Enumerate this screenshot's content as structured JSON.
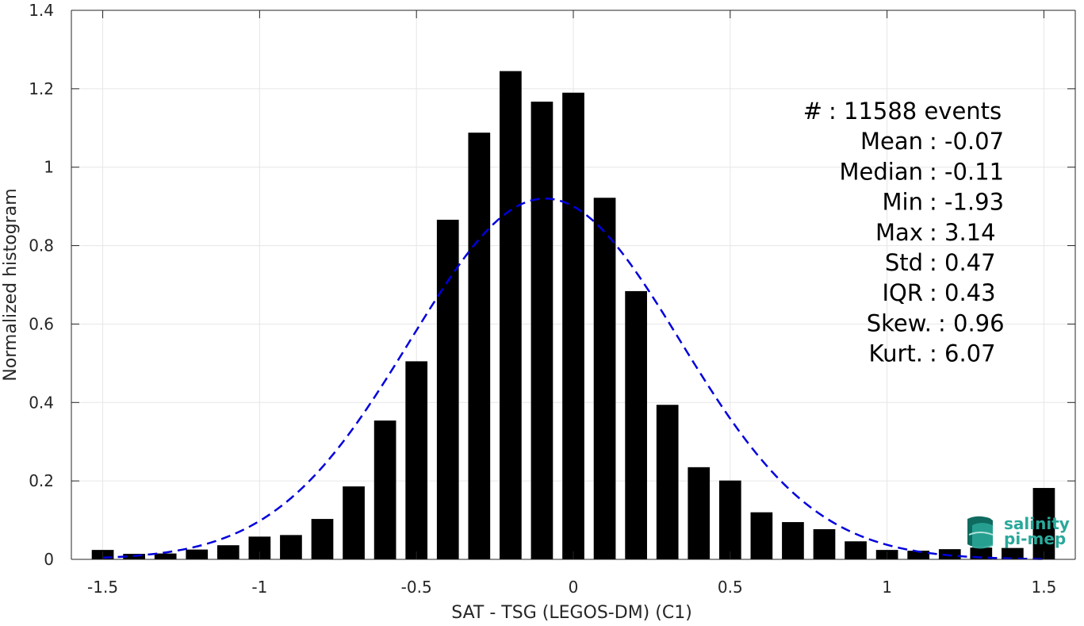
{
  "chart_data": {
    "type": "bar",
    "xlabel": "SAT - TSG (LEGOS-DM) (C1)",
    "ylabel": "Normalized histogram",
    "xlim": [
      -1.6,
      1.6
    ],
    "ylim": [
      0,
      1.4
    ],
    "grid": true,
    "x_ticks": [
      {
        "value": -1.5,
        "label": "-1.5"
      },
      {
        "value": -1,
        "label": "-1"
      },
      {
        "value": -0.5,
        "label": "-0.5"
      },
      {
        "value": 0,
        "label": "0"
      },
      {
        "value": 0.5,
        "label": "0.5"
      },
      {
        "value": 1,
        "label": "1"
      },
      {
        "value": 1.5,
        "label": "1.5"
      }
    ],
    "y_ticks": [
      {
        "value": 0,
        "label": "0"
      },
      {
        "value": 0.2,
        "label": "0.2"
      },
      {
        "value": 0.4,
        "label": "0.4"
      },
      {
        "value": 0.6,
        "label": "0.6"
      },
      {
        "value": 0.8,
        "label": "0.8"
      },
      {
        "value": 1,
        "label": "1"
      },
      {
        "value": 1.2,
        "label": "1.2"
      },
      {
        "value": 1.4,
        "label": "1.4"
      }
    ],
    "bar_width": 0.07,
    "bar_color": "#000000",
    "series": [
      {
        "x": [
          -1.5,
          -1.4,
          -1.3,
          -1.2,
          -1.1,
          -1.0,
          -0.9,
          -0.8,
          -0.7,
          -0.6,
          -0.5,
          -0.4,
          -0.3,
          -0.2,
          -0.1,
          0.0,
          0.1,
          0.2,
          0.3,
          0.4,
          0.5,
          0.6,
          0.7,
          0.8,
          0.9,
          1.0,
          1.1,
          1.2,
          1.3,
          1.4,
          1.5
        ],
        "values": [
          0.024,
          0.014,
          0.015,
          0.025,
          0.036,
          0.058,
          0.062,
          0.103,
          0.186,
          0.354,
          0.505,
          0.866,
          1.088,
          1.245,
          1.167,
          1.19,
          0.922,
          0.684,
          0.394,
          0.235,
          0.201,
          0.12,
          0.095,
          0.077,
          0.046,
          0.024,
          0.022,
          0.026,
          0.03,
          0.029,
          0.182
        ]
      }
    ],
    "fit_curve": {
      "style": "dashed",
      "color": "#0000dd",
      "mean": -0.09,
      "std": 0.43,
      "peak": 0.92
    },
    "stats": [
      "#  : 11588 events",
      "Mean : -0.07",
      "Median : -0.11",
      "Min : -1.93",
      "Max : 3.14",
      "Std : 0.47",
      "IQR : 0.43",
      "Skew. : 0.96",
      "Kurt. : 6.07"
    ]
  },
  "logo": {
    "line1": "salinity",
    "line2": "pi-mep",
    "color": "#2aa89a"
  }
}
